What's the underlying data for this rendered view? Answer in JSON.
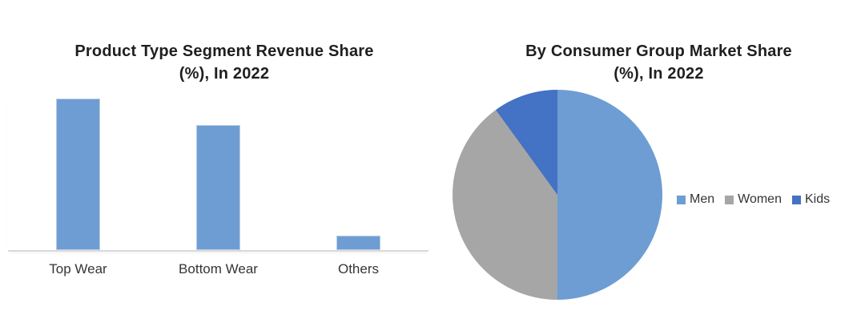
{
  "chart_data": [
    {
      "type": "bar",
      "title": "Product Type Segment Revenue Share (%), In 2022",
      "title_lines": [
        "Product Type Segment Revenue Share",
        "(%), In 2022"
      ],
      "categories": [
        "Top Wear",
        "Bottom Wear",
        "Others"
      ],
      "values": [
        52,
        43,
        5
      ],
      "unit": "%",
      "xlabel": "",
      "ylabel": "",
      "ylim": [
        0,
        55
      ],
      "grid": false,
      "axis_labels_visible": false,
      "bar_color": "#6d9dd3",
      "axis_line_color": "#dadada"
    },
    {
      "type": "pie",
      "title": "By Consumer Group Market Share (%), In 2022",
      "title_lines": [
        "By Consumer Group Market Share",
        "(%), In 2022"
      ],
      "labels": [
        "Men",
        "Women",
        "Kids"
      ],
      "values": [
        50,
        40,
        10
      ],
      "unit": "%",
      "colors": [
        "#6d9dd3",
        "#a6a6a6",
        "#4472c4"
      ],
      "legend_position": "right",
      "start_angle_deg": 0,
      "direction": "clockwise"
    }
  ]
}
